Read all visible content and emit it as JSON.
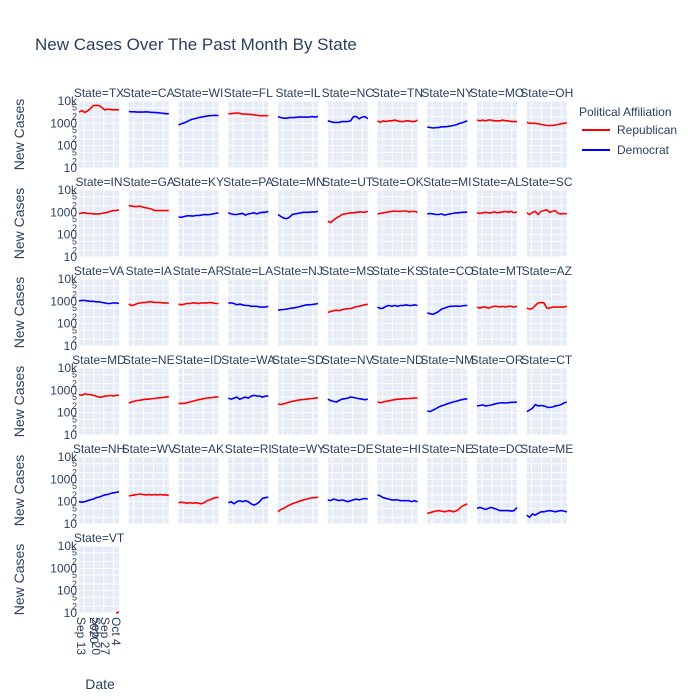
{
  "chart_data": {
    "type": "line",
    "title": "New Cases Over The Past Month By State",
    "xlabel": "Date",
    "ylabel": "New Cases",
    "y_scale": "log",
    "ylim": [
      10,
      10000
    ],
    "y_ticks": [
      "10",
      "100",
      "1000",
      "10k"
    ],
    "y_minor_ticks": [
      "2",
      "5",
      "2",
      "5",
      "2",
      "5"
    ],
    "x_ticks": [
      "Sep 13\n2020",
      "Sep 20",
      "Sep 27",
      "Oct 4"
    ],
    "xlim": [
      "2020-09-08",
      "2020-10-06"
    ],
    "grid": true,
    "legend": {
      "title": "Political Affiliation",
      "placement": "right",
      "entries": [
        {
          "name": "Republican",
          "color": "#ff0000"
        },
        {
          "name": "Democrat",
          "color": "#0000ff"
        }
      ]
    },
    "colors": {
      "Republican": "#ff0000",
      "Democrat": "#0000ff"
    },
    "facets": [
      {
        "label": "State=TX",
        "affiliation": "Republican",
        "values": [
          3200,
          3700,
          3100,
          3600,
          4600,
          6200,
          6400,
          6300,
          5100,
          4000,
          4300,
          4200,
          4000,
          4100,
          4000
        ]
      },
      {
        "label": "State=CA",
        "affiliation": "Democrat",
        "values": [
          3400,
          3300,
          3300,
          3200,
          3200,
          3200,
          3300,
          3200,
          3100,
          3100,
          3000,
          2900,
          2800,
          2700,
          2700
        ]
      },
      {
        "label": "State=WI",
        "affiliation": "Democrat",
        "values": [
          850,
          950,
          1050,
          1200,
          1400,
          1550,
          1650,
          1800,
          1900,
          2000,
          2100,
          2200,
          2250,
          2300,
          2200
        ]
      },
      {
        "label": "State=FL",
        "affiliation": "Republican",
        "values": [
          2700,
          2700,
          2800,
          2900,
          2800,
          2600,
          2600,
          2500,
          2500,
          2400,
          2300,
          2200,
          2200,
          2200,
          2200
        ]
      },
      {
        "label": "State=IL",
        "affiliation": "Democrat",
        "values": [
          2000,
          1800,
          1700,
          1700,
          1800,
          1800,
          1800,
          1900,
          1900,
          1900,
          1900,
          1900,
          2000,
          1900,
          2000
        ]
      },
      {
        "label": "State=NC",
        "affiliation": "Democrat",
        "values": [
          1300,
          1200,
          1100,
          1100,
          1100,
          1200,
          1200,
          1200,
          1300,
          2000,
          2000,
          1600,
          1900,
          2000,
          1600
        ]
      },
      {
        "label": "State=TN",
        "affiliation": "Republican",
        "values": [
          1300,
          1100,
          1300,
          1200,
          1300,
          1300,
          1400,
          1300,
          1200,
          1200,
          1300,
          1300,
          1200,
          1200,
          1400
        ]
      },
      {
        "label": "State=NY",
        "affiliation": "Democrat",
        "values": [
          680,
          650,
          620,
          640,
          650,
          700,
          700,
          720,
          750,
          800,
          850,
          950,
          1050,
          1150,
          1300
        ]
      },
      {
        "label": "State=MO",
        "affiliation": "Republican",
        "values": [
          1400,
          1300,
          1400,
          1300,
          1400,
          1400,
          1300,
          1300,
          1300,
          1400,
          1300,
          1300,
          1200,
          1200,
          1200
        ]
      },
      {
        "label": "State=OH",
        "affiliation": "Republican",
        "values": [
          1100,
          1000,
          1000,
          1000,
          950,
          900,
          850,
          800,
          800,
          800,
          850,
          900,
          950,
          1000,
          1050
        ]
      },
      {
        "label": "State=IN",
        "affiliation": "Republican",
        "values": [
          850,
          950,
          950,
          900,
          900,
          850,
          850,
          850,
          900,
          950,
          1000,
          1100,
          1200,
          1200,
          1300
        ]
      },
      {
        "label": "State=GA",
        "affiliation": "Republican",
        "values": [
          2000,
          1900,
          1800,
          1800,
          1900,
          1700,
          1600,
          1500,
          1400,
          1200,
          1200,
          1200,
          1200,
          1200,
          1200
        ]
      },
      {
        "label": "State=KY",
        "affiliation": "Democrat",
        "values": [
          620,
          600,
          650,
          700,
          700,
          680,
          720,
          720,
          750,
          800,
          780,
          800,
          850,
          900,
          950
        ]
      },
      {
        "label": "State=PA",
        "affiliation": "Democrat",
        "values": [
          950,
          850,
          800,
          800,
          850,
          900,
          750,
          850,
          900,
          950,
          850,
          950,
          1000,
          1000,
          1100
        ]
      },
      {
        "label": "State=MN",
        "affiliation": "Democrat",
        "values": [
          800,
          650,
          550,
          520,
          600,
          800,
          850,
          900,
          950,
          1000,
          1000,
          1000,
          1050,
          1050,
          1100
        ]
      },
      {
        "label": "State=UT",
        "affiliation": "Republican",
        "values": [
          400,
          350,
          450,
          550,
          650,
          800,
          850,
          900,
          950,
          950,
          1000,
          1050,
          1050,
          1000,
          1100
        ]
      },
      {
        "label": "State=OK",
        "affiliation": "Republican",
        "values": [
          850,
          900,
          950,
          1000,
          1050,
          1100,
          1150,
          1100,
          1100,
          1150,
          1150,
          1050,
          1100,
          1100,
          1000
        ]
      },
      {
        "label": "State=MI",
        "affiliation": "Democrat",
        "values": [
          850,
          900,
          850,
          800,
          800,
          850,
          750,
          800,
          850,
          900,
          950,
          950,
          1000,
          1000,
          1050
        ]
      },
      {
        "label": "State=AL",
        "affiliation": "Republican",
        "values": [
          950,
          900,
          950,
          1000,
          950,
          950,
          1050,
          950,
          1000,
          1050,
          1100,
          1000,
          1100,
          950,
          1050
        ]
      },
      {
        "label": "State=SC",
        "affiliation": "Republican",
        "values": [
          950,
          800,
          1000,
          1100,
          800,
          1100,
          1200,
          1300,
          1000,
          1100,
          1200,
          900,
          850,
          900,
          850
        ]
      },
      {
        "label": "State=VA",
        "affiliation": "Democrat",
        "values": [
          1050,
          1100,
          1100,
          1050,
          1000,
          1000,
          950,
          950,
          900,
          850,
          800,
          800,
          850,
          850,
          800
        ]
      },
      {
        "label": "State=IA",
        "affiliation": "Republican",
        "values": [
          750,
          650,
          700,
          800,
          850,
          900,
          900,
          950,
          950,
          900,
          900,
          900,
          850,
          850,
          850
        ]
      },
      {
        "label": "State=AR",
        "affiliation": "Republican",
        "values": [
          750,
          700,
          750,
          800,
          800,
          850,
          850,
          800,
          850,
          850,
          850,
          900,
          850,
          800,
          800
        ]
      },
      {
        "label": "State=LA",
        "affiliation": "Democrat",
        "values": [
          850,
          850,
          800,
          700,
          750,
          700,
          650,
          650,
          600,
          600,
          600,
          550,
          550,
          550,
          600
        ]
      },
      {
        "label": "State=NJ",
        "affiliation": "Democrat",
        "values": [
          400,
          420,
          430,
          450,
          480,
          500,
          520,
          550,
          600,
          650,
          700,
          700,
          720,
          750,
          800
        ]
      },
      {
        "label": "State=MS",
        "affiliation": "Republican",
        "values": [
          320,
          350,
          380,
          400,
          380,
          420,
          450,
          470,
          480,
          520,
          580,
          600,
          650,
          700,
          750
        ]
      },
      {
        "label": "State=KS",
        "affiliation": "Democrat",
        "values": [
          550,
          480,
          500,
          600,
          650,
          600,
          650,
          600,
          650,
          650,
          700,
          650,
          650,
          700,
          650
        ]
      },
      {
        "label": "State=CO",
        "affiliation": "Democrat",
        "values": [
          300,
          280,
          260,
          300,
          350,
          450,
          500,
          550,
          600,
          600,
          620,
          600,
          620,
          650,
          650
        ]
      },
      {
        "label": "State=MT",
        "affiliation": "Republican",
        "values": [
          550,
          500,
          550,
          550,
          500,
          550,
          600,
          600,
          550,
          600,
          550,
          600,
          600,
          550,
          600
        ]
      },
      {
        "label": "State=AZ",
        "affiliation": "Republican",
        "values": [
          500,
          450,
          480,
          650,
          850,
          900,
          850,
          500,
          500,
          550,
          550,
          550,
          550,
          550,
          600
        ]
      },
      {
        "label": "State=MD",
        "affiliation": "Republican",
        "values": [
          650,
          600,
          700,
          650,
          650,
          600,
          550,
          500,
          500,
          550,
          550,
          600,
          550,
          600,
          600
        ]
      },
      {
        "label": "State=NE",
        "affiliation": "Republican",
        "values": [
          270,
          300,
          330,
          350,
          360,
          380,
          400,
          400,
          420,
          430,
          450,
          470,
          480,
          500,
          520
        ]
      },
      {
        "label": "State=ID",
        "affiliation": "Republican",
        "values": [
          260,
          260,
          260,
          280,
          300,
          330,
          350,
          380,
          400,
          430,
          450,
          470,
          480,
          500,
          500
        ]
      },
      {
        "label": "State=WA",
        "affiliation": "Democrat",
        "values": [
          450,
          400,
          450,
          500,
          400,
          450,
          500,
          450,
          550,
          600,
          550,
          550,
          500,
          550,
          550
        ]
      },
      {
        "label": "State=SD",
        "affiliation": "Republican",
        "values": [
          250,
          230,
          250,
          270,
          300,
          320,
          340,
          360,
          380,
          390,
          400,
          420,
          430,
          450,
          470
        ]
      },
      {
        "label": "State=NV",
        "affiliation": "Democrat",
        "values": [
          400,
          350,
          320,
          300,
          350,
          400,
          420,
          450,
          500,
          480,
          450,
          420,
          400,
          380,
          400
        ]
      },
      {
        "label": "State=ND",
        "affiliation": "Republican",
        "values": [
          300,
          280,
          300,
          320,
          340,
          360,
          380,
          400,
          400,
          420,
          420,
          430,
          440,
          450,
          450
        ]
      },
      {
        "label": "State=NM",
        "affiliation": "Democrat",
        "values": [
          120,
          110,
          130,
          150,
          180,
          200,
          220,
          250,
          270,
          300,
          320,
          350,
          380,
          400,
          420
        ]
      },
      {
        "label": "State=OR",
        "affiliation": "Democrat",
        "values": [
          200,
          210,
          220,
          200,
          210,
          220,
          240,
          260,
          270,
          280,
          270,
          280,
          290,
          290,
          300
        ]
      },
      {
        "label": "State=CT",
        "affiliation": "Democrat",
        "values": [
          110,
          130,
          160,
          230,
          200,
          210,
          200,
          180,
          170,
          180,
          200,
          210,
          230,
          270,
          300
        ]
      },
      {
        "label": "State=NH",
        "affiliation": "Democrat",
        "values": [
          100,
          95,
          100,
          110,
          120,
          130,
          150,
          160,
          180,
          200,
          210,
          230,
          250,
          260,
          280
        ]
      },
      {
        "label": "State=WV",
        "affiliation": "Republican",
        "values": [
          180,
          190,
          200,
          210,
          220,
          210,
          200,
          210,
          200,
          210,
          200,
          210,
          200,
          200,
          190
        ]
      },
      {
        "label": "State=AK",
        "affiliation": "Republican",
        "values": [
          90,
          95,
          90,
          85,
          90,
          85,
          90,
          85,
          80,
          90,
          110,
          120,
          140,
          150,
          160
        ]
      },
      {
        "label": "State=RI",
        "affiliation": "Democrat",
        "values": [
          90,
          100,
          80,
          100,
          110,
          100,
          110,
          100,
          80,
          70,
          80,
          100,
          140,
          150,
          160
        ]
      },
      {
        "label": "State=WY",
        "affiliation": "Republican",
        "values": [
          35,
          45,
          50,
          60,
          70,
          80,
          90,
          100,
          110,
          120,
          130,
          140,
          150,
          150,
          160
        ]
      },
      {
        "label": "State=DE",
        "affiliation": "Democrat",
        "values": [
          120,
          110,
          130,
          120,
          110,
          120,
          110,
          100,
          110,
          120,
          130,
          120,
          130,
          140,
          130
        ]
      },
      {
        "label": "State=HI",
        "affiliation": "Democrat",
        "values": [
          200,
          180,
          150,
          140,
          130,
          120,
          120,
          120,
          110,
          110,
          110,
          110,
          100,
          110,
          100
        ]
      },
      {
        "label": "State=NE",
        "affiliation": "Republican",
        "values": [
          30,
          32,
          35,
          38,
          40,
          38,
          35,
          38,
          40,
          35,
          38,
          45,
          60,
          70,
          80
        ]
      },
      {
        "label": "State=DC",
        "affiliation": "Democrat",
        "values": [
          50,
          55,
          50,
          45,
          50,
          55,
          50,
          45,
          40,
          40,
          40,
          40,
          38,
          40,
          55
        ]
      },
      {
        "label": "State=ME",
        "affiliation": "Democrat",
        "values": [
          25,
          20,
          28,
          25,
          30,
          35,
          35,
          38,
          40,
          38,
          35,
          38,
          40,
          38,
          35
        ]
      },
      {
        "label": "State=VT",
        "affiliation": "Republican",
        "values": [
          null,
          null,
          null,
          null,
          null,
          null,
          null,
          null,
          null,
          null,
          null,
          null,
          null,
          10,
          11
        ]
      }
    ]
  }
}
